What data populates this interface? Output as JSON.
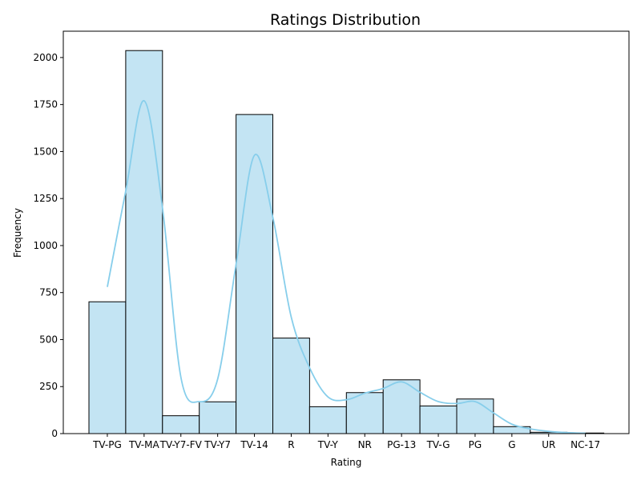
{
  "chart_data": {
    "type": "bar",
    "title": "Ratings Distribution",
    "xlabel": "Rating",
    "ylabel": "Frequency",
    "categories": [
      "TV-PG",
      "TV-MA",
      "TV-Y7-FV",
      "TV-Y7",
      "TV-14",
      "R",
      "TV-Y",
      "NR",
      "PG-13",
      "TV-G",
      "PG",
      "G",
      "UR",
      "NC-17"
    ],
    "values": [
      701,
      2037,
      95,
      169,
      1697,
      508,
      143,
      218,
      286,
      147,
      184,
      37,
      7,
      3
    ],
    "ylim": [
      0,
      2140
    ],
    "yticks": [
      0,
      250,
      500,
      750,
      1000,
      1250,
      1500,
      1750,
      2000
    ],
    "kde": {
      "x": [
        0,
        0.5,
        1,
        1.5,
        2,
        2.5,
        3,
        3.5,
        4,
        4.5,
        5,
        5.5,
        6,
        6.5,
        7,
        7.5,
        8,
        8.5,
        9,
        9.5,
        10,
        10.5,
        11,
        11.5,
        12,
        12.5,
        13
      ],
      "y": [
        780,
        1290,
        1770,
        1200,
        300,
        170,
        290,
        900,
        1480,
        1150,
        620,
        350,
        195,
        180,
        215,
        240,
        275,
        220,
        170,
        160,
        170,
        110,
        50,
        25,
        12,
        5,
        2
      ]
    },
    "grid": false,
    "legend": "none",
    "colors": {
      "bar_fill": "#c3e4f3",
      "bar_edge": "#000000",
      "kde_line": "#87ceeb"
    }
  }
}
